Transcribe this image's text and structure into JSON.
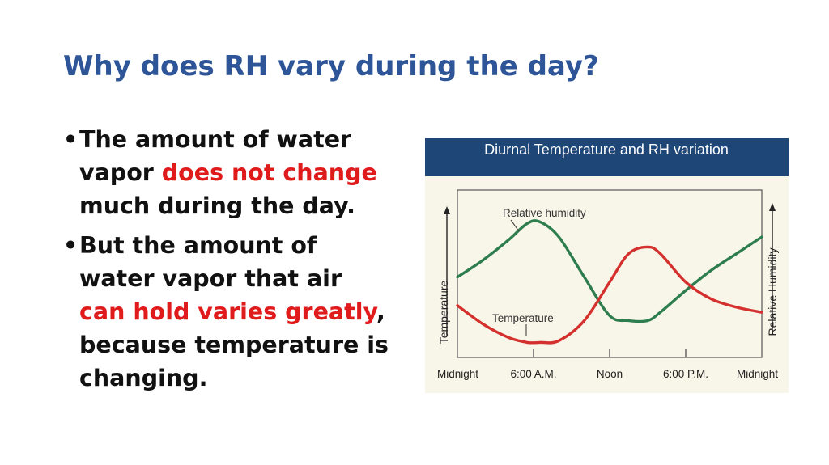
{
  "slide": {
    "title": "Why does RH vary during the day?",
    "bullets": [
      {
        "before": "The amount of water vapor ",
        "highlight": "does not change",
        "after": " much during the day."
      },
      {
        "before": "But the amount of water vapor that air ",
        "highlight": "can hold varies greatly",
        "after": ", because temperature is changing."
      }
    ],
    "colors": {
      "title": "#2e5597",
      "highlight": "#e01b1b",
      "chart_header": "#1e4677"
    }
  },
  "chart_data": {
    "type": "line",
    "title": "Diurnal Temperature and RH variation",
    "xlabel": "",
    "ylabel": "Temperature",
    "ylabel_right": "Relative Humidity",
    "x_ticks": [
      "Midnight",
      "6:00 A.M.",
      "Noon",
      "6:00 P.M.",
      "Midnight"
    ],
    "x": [
      0,
      2,
      4,
      5.5,
      6.5,
      8,
      10,
      12,
      13.5,
      15,
      16,
      18,
      20,
      22,
      24
    ],
    "xlim": [
      0,
      24
    ],
    "ylim": [
      0,
      100
    ],
    "grid": false,
    "legend": "inline labels",
    "series": [
      {
        "name": "Relative humidity",
        "color": "#2e7d4f",
        "values": [
          48,
          58,
          70,
          80,
          81,
          72,
          48,
          25,
          22,
          22,
          27,
          40,
          52,
          62,
          72
        ]
      },
      {
        "name": "Temperature",
        "color": "#d4302e",
        "values": [
          31,
          20,
          12,
          9,
          9,
          10,
          22,
          45,
          62,
          66,
          62,
          45,
          35,
          30,
          27
        ]
      }
    ]
  }
}
